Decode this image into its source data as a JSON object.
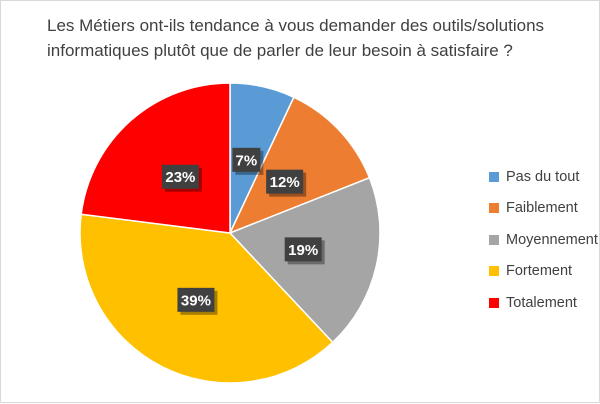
{
  "title_lines": [
    "Les Métiers ont-ils tendance à vous demander des outils/solutions",
    "informatiques plutôt que de parler de leur besoin à satisfaire ?"
  ],
  "chart_data": {
    "type": "pie",
    "title": "Les Métiers ont-ils tendance à vous demander des outils/solutions informatiques plutôt que de parler de leur besoin à satisfaire ?",
    "categories": [
      "Pas du tout",
      "Faiblement",
      "Moyennement",
      "Fortement",
      "Totalement"
    ],
    "values": [
      7,
      12,
      19,
      39,
      23
    ],
    "data_labels": [
      "7%",
      "12%",
      "19%",
      "39%",
      "23%"
    ],
    "colors": [
      "#5b9bd5",
      "#ed7d31",
      "#a5a5a5",
      "#ffc000",
      "#ff0000"
    ],
    "legend_position": "right",
    "legend_labels": [
      "Pas du tout",
      "Faiblement",
      "Moyennement",
      "Fortement",
      "Totalement"
    ]
  }
}
